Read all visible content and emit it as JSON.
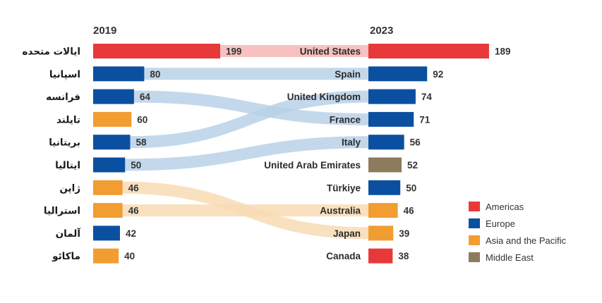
{
  "chart_data": {
    "type": "bar",
    "years": {
      "left": "2019",
      "right": "2023"
    },
    "max_value": 199,
    "left": [
      {
        "label": "ایالات متحده",
        "value": 199,
        "region": "Americas"
      },
      {
        "label": "اسپانیا",
        "value": 80,
        "region": "Europe"
      },
      {
        "label": "فرانسه",
        "value": 64,
        "region": "Europe"
      },
      {
        "label": "تایلند",
        "value": 60,
        "region": "Asia and the Pacific"
      },
      {
        "label": "بریتانیا",
        "value": 58,
        "region": "Europe"
      },
      {
        "label": "ایتالیا",
        "value": 50,
        "region": "Europe"
      },
      {
        "label": "ژاپن",
        "value": 46,
        "region": "Asia and the Pacific"
      },
      {
        "label": "استرالیا",
        "value": 46,
        "region": "Asia and the Pacific"
      },
      {
        "label": "آلمان",
        "value": 42,
        "region": "Europe"
      },
      {
        "label": "ماکائو",
        "value": 40,
        "region": "Asia and the Pacific"
      }
    ],
    "right": [
      {
        "label": "United States",
        "value": 189,
        "region": "Americas"
      },
      {
        "label": "Spain",
        "value": 92,
        "region": "Europe"
      },
      {
        "label": "United Kingdom",
        "value": 74,
        "region": "Europe"
      },
      {
        "label": "France",
        "value": 71,
        "region": "Europe"
      },
      {
        "label": "Italy",
        "value": 56,
        "region": "Europe"
      },
      {
        "label": "United Arab Emirates",
        "value": 52,
        "region": "Middle East"
      },
      {
        "label": "Türkiye",
        "value": 50,
        "region": "Europe"
      },
      {
        "label": "Australia",
        "value": 46,
        "region": "Asia and the Pacific"
      },
      {
        "label": "Japan",
        "value": 39,
        "region": "Asia and the Pacific"
      },
      {
        "label": "Canada",
        "value": 38,
        "region": "Americas"
      }
    ],
    "links": [
      {
        "from": 0,
        "to": 0,
        "region": "Americas"
      },
      {
        "from": 1,
        "to": 1,
        "region": "Europe"
      },
      {
        "from": 2,
        "to": 3,
        "region": "Europe"
      },
      {
        "from": 4,
        "to": 2,
        "region": "Europe"
      },
      {
        "from": 5,
        "to": 4,
        "region": "Europe"
      },
      {
        "from": 6,
        "to": 8,
        "region": "Asia and the Pacific"
      },
      {
        "from": 7,
        "to": 7,
        "region": "Asia and the Pacific"
      }
    ],
    "legend": [
      {
        "name": "Americas",
        "color": "#e8393a"
      },
      {
        "name": "Europe",
        "color": "#0b50a0"
      },
      {
        "name": "Asia and the Pacific",
        "color": "#f19d32"
      },
      {
        "name": "Middle East",
        "color": "#8c7b5c"
      }
    ],
    "link_colors": {
      "Americas": "#f6b5b6",
      "Europe": "#b9d1e7",
      "Asia and the Pacific": "#f8dbb4"
    },
    "legend_placement": "right"
  }
}
